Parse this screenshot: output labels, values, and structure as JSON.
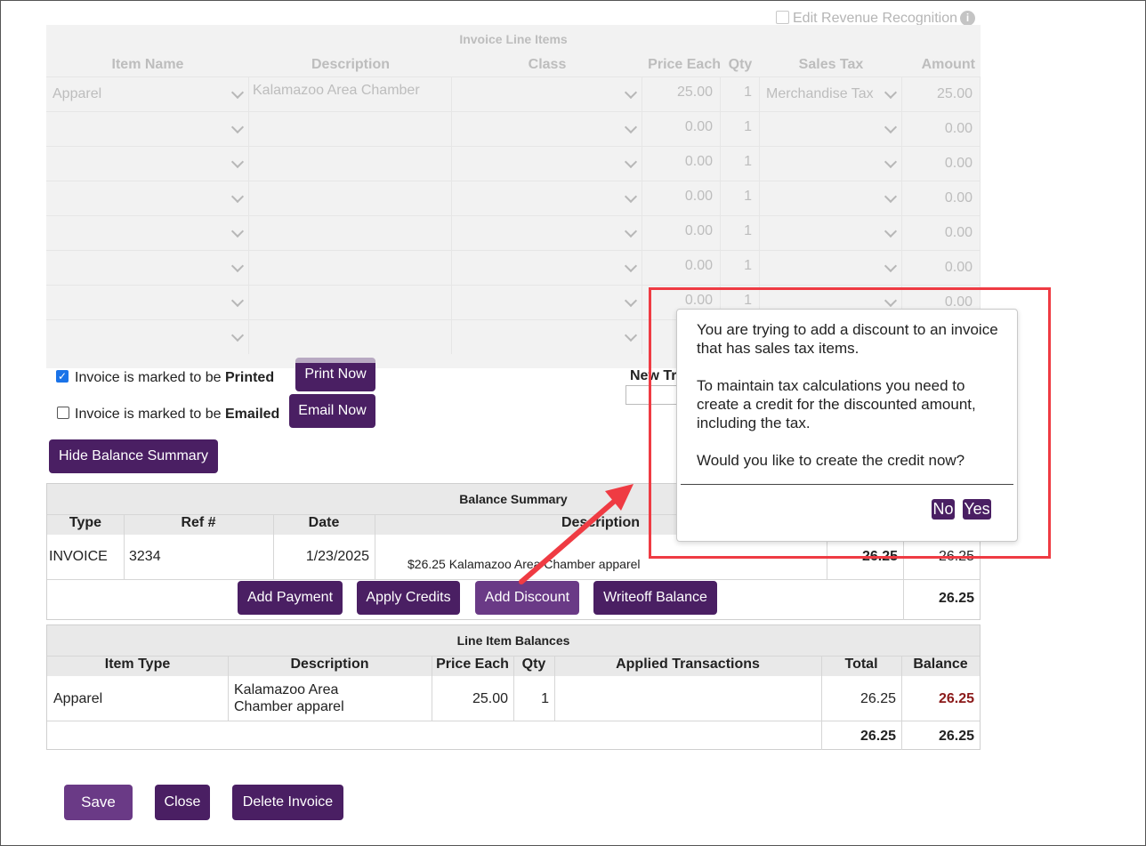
{
  "revenue_recognition": {
    "label": "Edit Revenue Recognition",
    "checked": false
  },
  "line_items": {
    "title": "Invoice Line Items",
    "headers": [
      "Item Name",
      "Description",
      "Class",
      "Price Each",
      "Qty",
      "Sales Tax",
      "Amount"
    ],
    "rows": [
      {
        "item": "Apparel",
        "description": "Kalamazoo Area Chamber",
        "class": "",
        "price": "25.00",
        "qty": "1",
        "tax": "Merchandise Tax",
        "amount": "25.00"
      },
      {
        "item": "",
        "description": "",
        "class": "",
        "price": "0.00",
        "qty": "1",
        "tax": "",
        "amount": "0.00"
      },
      {
        "item": "",
        "description": "",
        "class": "",
        "price": "0.00",
        "qty": "1",
        "tax": "",
        "amount": "0.00"
      },
      {
        "item": "",
        "description": "",
        "class": "",
        "price": "0.00",
        "qty": "1",
        "tax": "",
        "amount": "0.00"
      },
      {
        "item": "",
        "description": "",
        "class": "",
        "price": "0.00",
        "qty": "1",
        "tax": "",
        "amount": "0.00"
      },
      {
        "item": "",
        "description": "",
        "class": "",
        "price": "0.00",
        "qty": "1",
        "tax": "",
        "amount": "0.00"
      },
      {
        "item": "",
        "description": "",
        "class": "",
        "price": "0.00",
        "qty": "1",
        "tax": "",
        "amount": "0.00"
      },
      {
        "item": "",
        "description": "",
        "class": "",
        "price": "",
        "qty": "",
        "tax": "",
        "amount": ""
      }
    ]
  },
  "print_options": {
    "printed_prefix": "Invoice is marked to be ",
    "printed_bold": "Printed",
    "printed_checked": true,
    "emailed_prefix": "Invoice is marked to be ",
    "emailed_bold": "Emailed",
    "emailed_checked": false,
    "print_now": "Print Now",
    "email_now": "Email Now",
    "new_tr_label": "New Tr"
  },
  "hide_balance_summary": "Hide Balance Summary",
  "balance_summary": {
    "title": "Balance Summary",
    "headers": [
      "Type",
      "Ref #",
      "Date",
      "Description"
    ],
    "row": {
      "type": "INVOICE",
      "ref": "3234",
      "date": "1/23/2025",
      "description": "$26.25 Kalamazoo Area Chamber apparel",
      "amount": "26.25",
      "balance": "26.25"
    },
    "buttons": [
      "Add Payment",
      "Apply Credits",
      "Add Discount",
      "Writeoff Balance"
    ],
    "total": "26.25"
  },
  "line_item_balances": {
    "title": "Line Item Balances",
    "headers": [
      "Item Type",
      "Description",
      "Price Each",
      "Qty",
      "Applied Transactions",
      "Total",
      "Balance"
    ],
    "row": {
      "item_type": "Apparel",
      "description_line1": "Kalamazoo Area",
      "description_line2": "Chamber apparel",
      "price": "25.00",
      "qty": "1",
      "applied": "",
      "total": "26.25",
      "balance": "26.25"
    },
    "totals": {
      "total": "26.25",
      "balance": "26.25"
    },
    "balance_color": "#8b1a1a"
  },
  "footer_buttons": {
    "save": "Save",
    "close": "Close",
    "delete": "Delete Invoice"
  },
  "dialog": {
    "line1": "You are trying to add a discount to an invoice that has sales tax items.",
    "line2": "To maintain tax calculations you need to create a credit for the discounted amount, including the tax.",
    "line3": "Would you like to create the credit now?",
    "no": "No",
    "yes": "Yes"
  },
  "colors": {
    "brand": "#4a1f63",
    "highlight": "#ef3b43"
  }
}
